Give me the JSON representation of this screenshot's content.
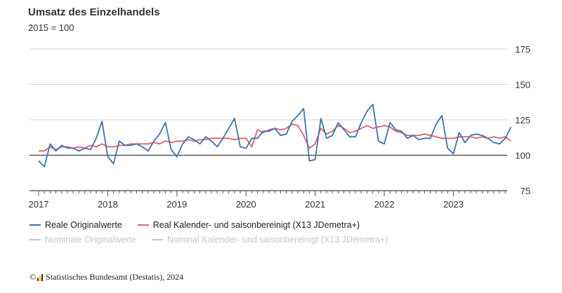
{
  "chart_data": {
    "type": "line",
    "title": "Umsatz des Einzelhandels",
    "subtitle": "2015 = 100",
    "ylim": [
      75,
      175
    ],
    "y_ticks": [
      "75",
      "100",
      "125",
      "150",
      "175"
    ],
    "y_tick_values": [
      75,
      100,
      125,
      150,
      175
    ],
    "x_tick_labels": [
      "2017",
      "2018",
      "2019",
      "2020",
      "2021",
      "2022",
      "2023"
    ],
    "x_start": "2017-01",
    "reference_line": 100,
    "series": [
      {
        "name": "Reale Originalwerte",
        "color": "#3f74ad",
        "values": [
          96,
          92,
          108,
          103,
          107,
          105,
          105,
          103,
          105,
          104,
          112,
          124,
          99,
          94,
          110,
          107,
          107,
          108,
          106,
          103,
          110,
          115,
          123,
          104,
          99,
          108,
          113,
          111,
          108,
          113,
          110,
          106,
          112,
          119,
          126,
          106,
          105,
          112,
          112,
          117,
          117,
          119,
          114,
          115,
          124,
          128,
          133,
          96,
          97,
          126,
          112,
          114,
          123,
          118,
          113,
          113,
          123,
          131,
          136,
          110,
          108,
          123,
          118,
          117,
          112,
          114,
          111,
          112,
          112,
          122,
          128,
          105,
          101,
          116,
          109,
          114,
          115,
          114,
          112,
          109,
          108,
          112,
          120
        ]
      },
      {
        "name": "Real Kalender- und saisonbereinigt (X13 JDemetra+)",
        "color": "#e06070",
        "values": [
          103,
          103,
          106,
          104,
          106,
          106,
          105,
          106,
          105,
          107,
          106,
          108,
          106,
          106,
          107,
          107,
          108,
          108,
          108,
          108,
          109,
          108,
          110,
          109,
          110,
          110,
          111,
          110,
          111,
          111,
          112,
          112,
          112,
          112,
          111,
          112,
          112,
          106,
          118,
          116,
          118,
          119,
          118,
          119,
          122,
          121,
          114,
          105,
          108,
          119,
          115,
          117,
          121,
          119,
          116,
          117,
          119,
          121,
          119,
          120,
          121,
          120,
          117,
          116,
          114,
          114,
          114,
          115,
          114,
          113,
          112,
          112,
          112,
          113,
          113,
          113,
          112,
          113,
          112,
          113,
          112,
          113,
          110
        ]
      }
    ]
  },
  "legend": [
    {
      "label": "Reale Originalwerte",
      "color": "#3f74ad",
      "active": true
    },
    {
      "label": "Real Kalender- und saisonbereinigt (X13 JDemetra+)",
      "color": "#e06070",
      "active": true
    },
    {
      "label": "Nominale Originalwerte",
      "color": "#c8c8c8",
      "active": false
    },
    {
      "label": "Nominal Kalender- und saisonbereinigt (X13 JDemetra+)",
      "color": "#c8c8c8",
      "active": false
    }
  ],
  "footer": {
    "prefix": "©",
    "text": "Statistisches Bundesamt (Destatis), 2024"
  }
}
